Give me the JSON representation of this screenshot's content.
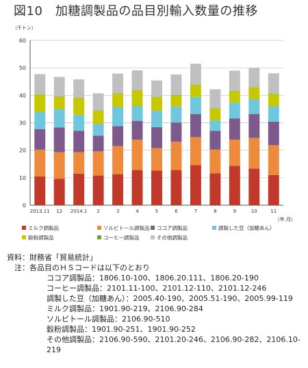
{
  "title": "図10　加糖調製品の品目別輸入数量の推移",
  "chart_data": {
    "type": "bar",
    "stacked": true,
    "unit_label": "（千トン）",
    "x_unit_label": "（年.月）",
    "ylim": [
      0,
      60
    ],
    "yticks": [
      0,
      10,
      20,
      30,
      40,
      50,
      60
    ],
    "grid": true,
    "legend_position": "bottom",
    "categories": [
      "2013.11",
      "12",
      "2014.1",
      "2",
      "3",
      "4",
      "5",
      "6",
      "7",
      "8",
      "9",
      "10",
      "11"
    ],
    "series": [
      {
        "name": "ミルク調製品",
        "color": "#c0392b",
        "values": [
          10.5,
          9.6,
          11.5,
          10.8,
          11.3,
          12.8,
          12.6,
          12.8,
          14.6,
          11.6,
          14.3,
          13.3,
          11.0
        ]
      },
      {
        "name": "ソルビトール調製品",
        "color": "#ee8a3c",
        "values": [
          9.7,
          9.7,
          7.8,
          8.8,
          10.2,
          11.1,
          8.2,
          10.3,
          10.2,
          8.7,
          9.6,
          11.2,
          10.9
        ]
      },
      {
        "name": "ココア調製品",
        "color": "#7d5a8c",
        "values": [
          7.5,
          9.0,
          7.8,
          5.7,
          7.3,
          6.8,
          7.6,
          7.0,
          8.4,
          6.8,
          7.7,
          8.7,
          8.5
        ]
      },
      {
        "name": "調製した豆（加糖あん）",
        "color": "#6fc7dd",
        "values": [
          6.3,
          6.7,
          5.8,
          4.3,
          6.9,
          5.4,
          6.0,
          5.8,
          6.2,
          3.8,
          5.8,
          5.4,
          5.6
        ]
      },
      {
        "name": "穀粉調製品",
        "color": "#c8c800",
        "values": [
          6.2,
          4.5,
          6.1,
          4.8,
          4.9,
          5.6,
          5.0,
          4.1,
          4.3,
          4.3,
          4.1,
          4.3,
          4.5
        ]
      },
      {
        "name": "コーヒー調製品",
        "color": "#66a838",
        "values": [
          0.1,
          0.1,
          0.1,
          0.1,
          0.1,
          0.1,
          0.1,
          0.1,
          0.1,
          0.1,
          0.1,
          0.1,
          0.1
        ]
      },
      {
        "name": "その他調製品",
        "color": "#c0c0c0",
        "values": [
          7.4,
          7.1,
          6.7,
          6.2,
          7.2,
          7.3,
          5.9,
          7.5,
          7.7,
          6.9,
          7.4,
          6.9,
          7.4
        ]
      }
    ]
  },
  "notes": {
    "source": "資料：財務省「貿易統計」",
    "note_header": "注：各品目のＨＳコードは以下のとおり",
    "codes": [
      "ココア調製品：1806.10-100、1806.20.111、1806.20-190",
      "コーヒー調製品：2101.11-100、2101.12-110、2101.12-246",
      "調製した豆（加糖あん）：2005.40-190、2005.51-190、2005.99-119",
      "ミルク調製品：1901.90-219、2106.90-284",
      "ソルビトール調製品：2106.90-510",
      "穀粉調製品：1901.90-251、1901.90-252"
    ],
    "last_code": "その他調製品：2106.90-590、2101.20-246、2106.90-282、2106.10-219"
  }
}
